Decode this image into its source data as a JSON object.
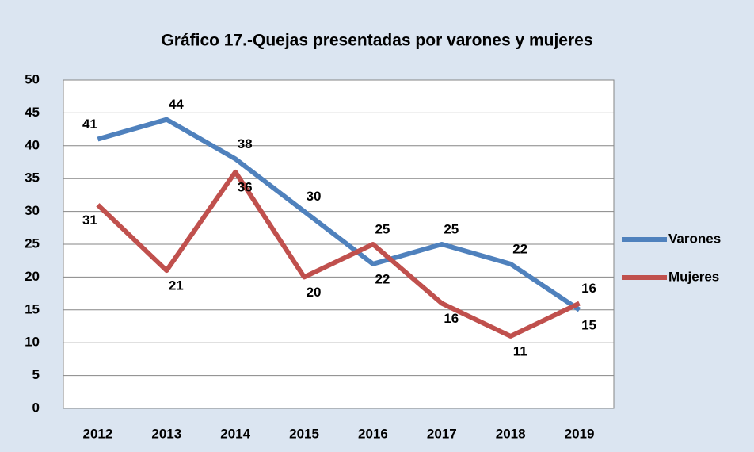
{
  "chart_data": {
    "type": "line",
    "title": "Gráfico 17.-Quejas presentadas por varones y mujeres",
    "categories": [
      "2012",
      "2013",
      "2014",
      "2015",
      "2016",
      "2017",
      "2018",
      "2019"
    ],
    "series": [
      {
        "name": "Varones",
        "color": "#4f81bd",
        "values": [
          41,
          44,
          38,
          30,
          22,
          25,
          22,
          15
        ]
      },
      {
        "name": "Mujeres",
        "color": "#c0504d",
        "values": [
          31,
          21,
          36,
          20,
          25,
          16,
          11,
          16
        ]
      }
    ],
    "ylim": [
      0,
      50
    ],
    "yticks": [
      0,
      5,
      10,
      15,
      20,
      25,
      30,
      35,
      40,
      45,
      50
    ],
    "grid": true,
    "legend": "right"
  }
}
